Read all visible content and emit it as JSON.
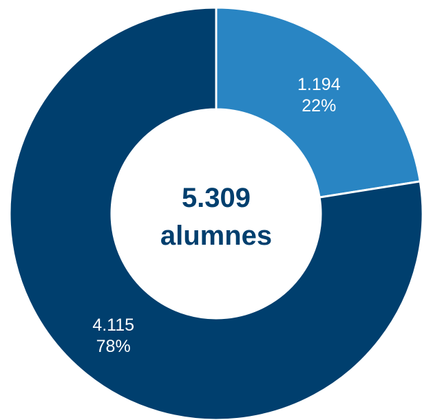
{
  "chart_data": {
    "type": "pie",
    "donut": true,
    "slices": [
      {
        "value": 1194,
        "value_label": "1.194",
        "percent_label": "22%",
        "color": "#2985c3"
      },
      {
        "value": 4115,
        "value_label": "4.115",
        "percent_label": "78%",
        "color": "#003f6e"
      }
    ],
    "center": {
      "total": "5.309",
      "unit": "alumnes",
      "color": "#003f6e"
    },
    "legend": "none"
  }
}
